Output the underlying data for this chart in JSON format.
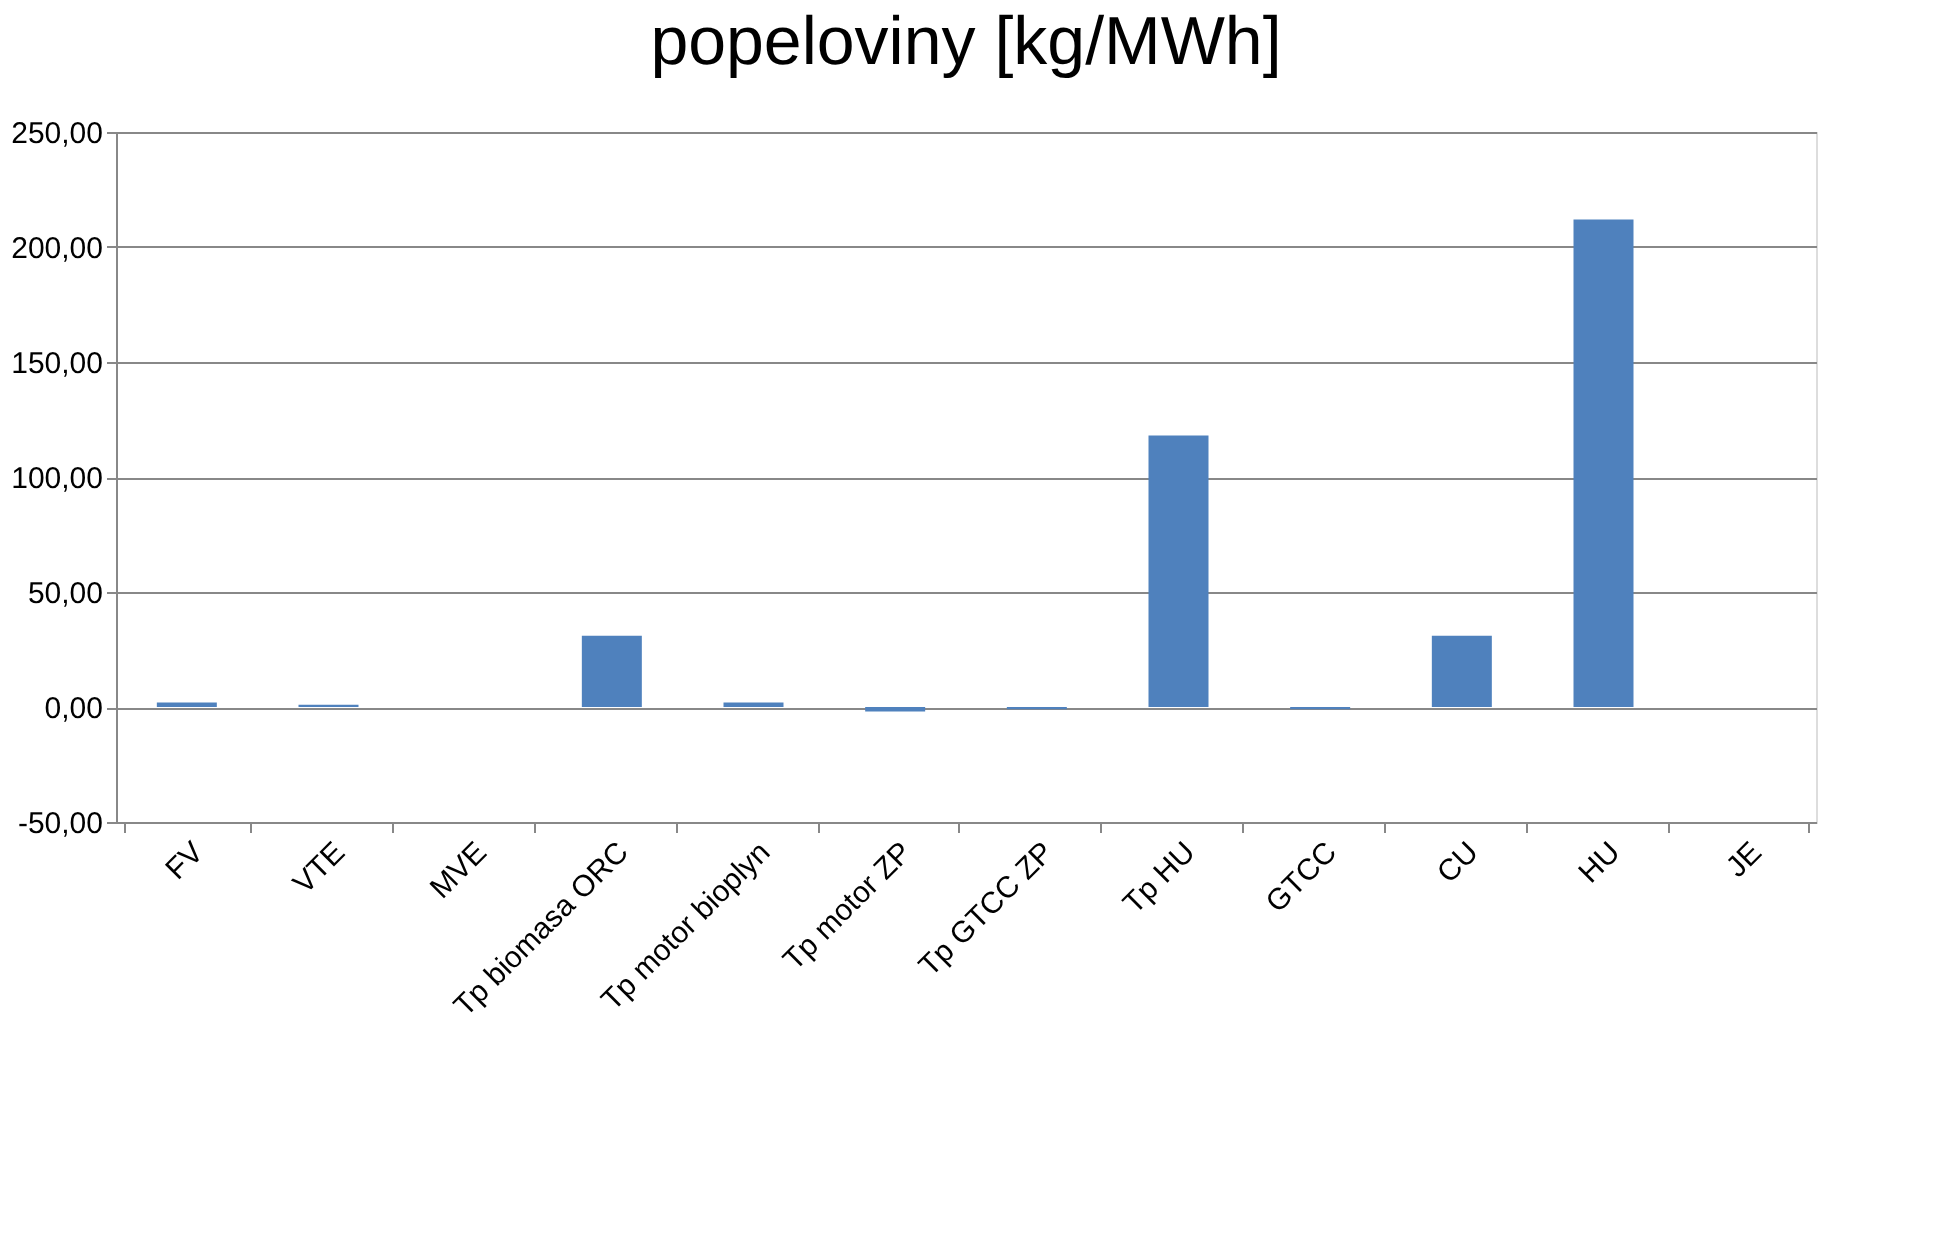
{
  "chart_data": {
    "type": "bar",
    "title": "popeloviny [kg/MWh]",
    "categories": [
      "FV",
      "VTE",
      "MVE",
      "Tp biomasa ORC",
      "Tp motor bioplyn",
      "Tp motor ZP",
      "Tp GTCC ZP",
      "Tp HU",
      "GTCC",
      "CU",
      "HU",
      "JE"
    ],
    "values": [
      2,
      1,
      0,
      31,
      2,
      -2,
      -1,
      118,
      -1,
      31,
      212,
      0
    ],
    "color": "#4f81bd",
    "ylim": [
      -50,
      250
    ],
    "yticks": [
      {
        "value": -50,
        "label": "-50,00"
      },
      {
        "value": 0,
        "label": "0,00"
      },
      {
        "value": 50,
        "label": "50,00"
      },
      {
        "value": 100,
        "label": "100,00"
      },
      {
        "value": 150,
        "label": "150,00"
      },
      {
        "value": 200,
        "label": "200,00"
      },
      {
        "value": 250,
        "label": "250,00"
      }
    ],
    "grid": "y"
  }
}
